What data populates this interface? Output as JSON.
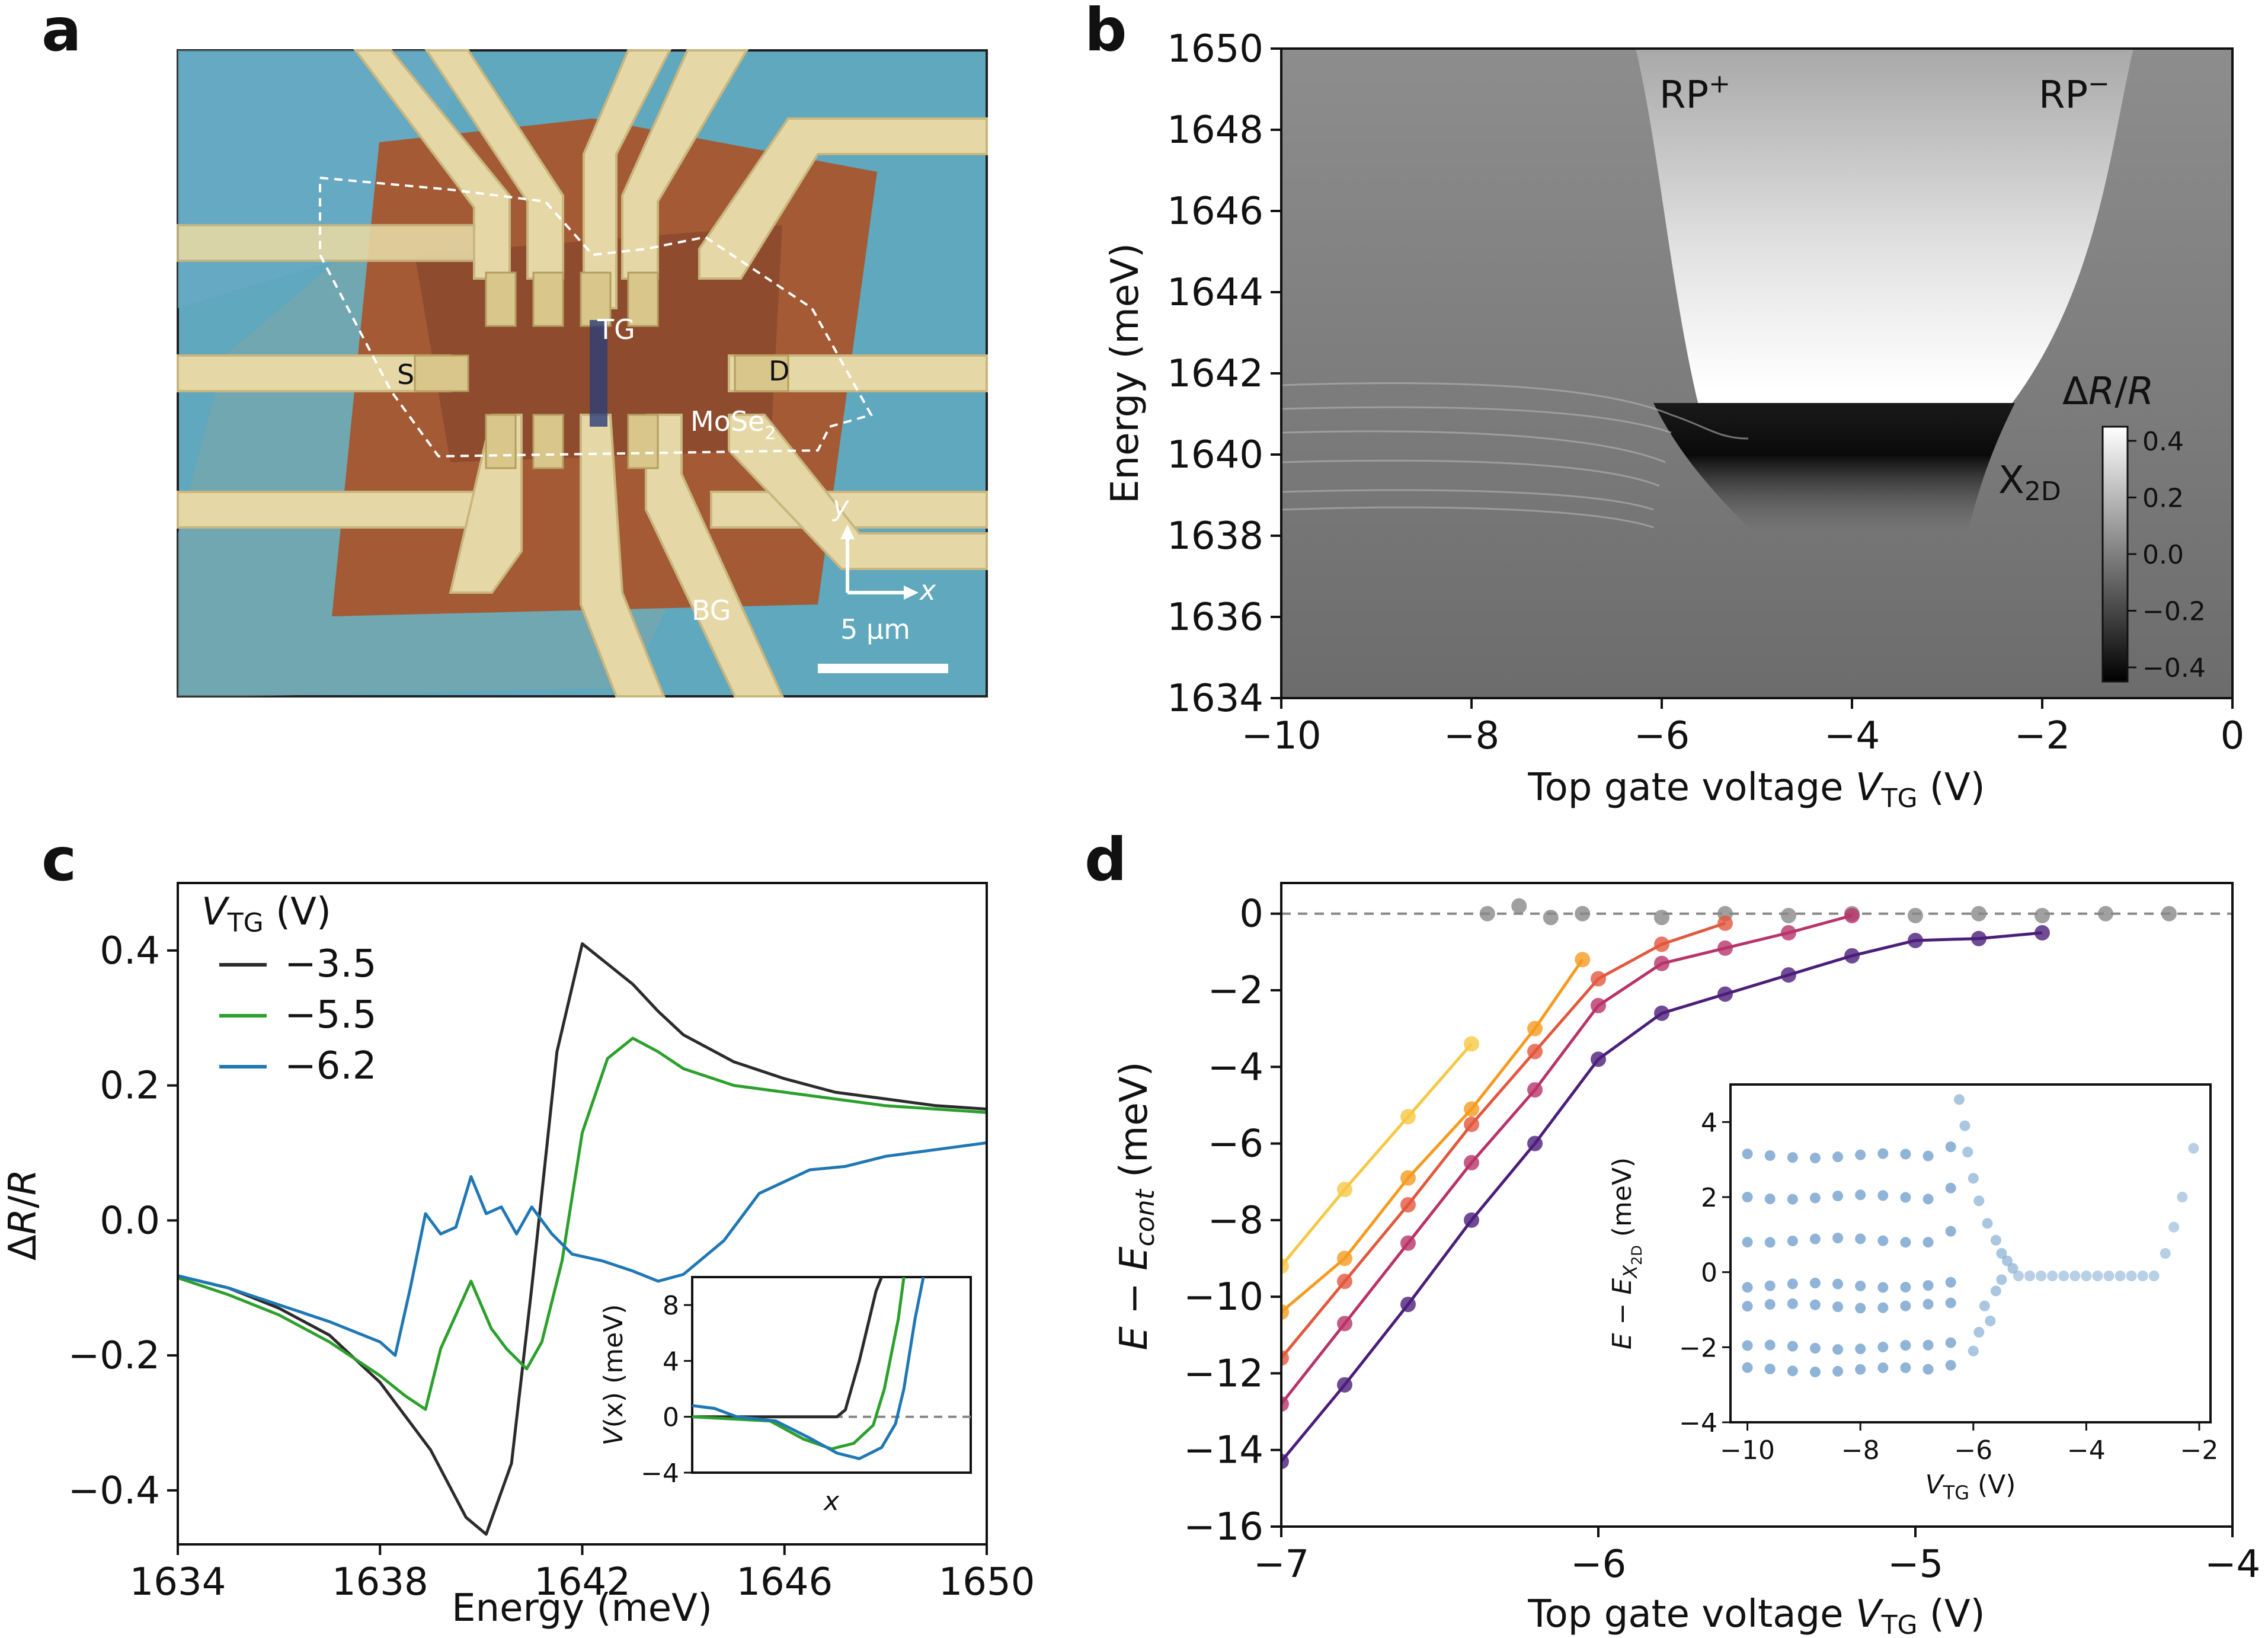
{
  "panel_labels": [
    "a",
    "b",
    "c",
    "d"
  ],
  "colors": {
    "black": "#2b2b2b",
    "green": "#2ca02c",
    "blue": "#1f77b4",
    "gray": "#888888",
    "inset_dots": "#7da7d0"
  },
  "panel_a": {
    "labels": {
      "S": "S",
      "D": "D",
      "TG": "TG",
      "BG": "BG",
      "MoSe2": "MoSe",
      "MoSe2_sub": "2",
      "x_axis": "x",
      "y_axis": "y",
      "scale": "5 μm"
    }
  },
  "chart_data": [
    {
      "id": "b",
      "type": "heatmap",
      "xlabel": "Top gate voltage ",
      "xlabel_var": "V",
      "xlabel_sub": "TG",
      "xlabel_unit": " (V)",
      "ylabel": "Energy (meV)",
      "xlim": [
        -10,
        0
      ],
      "ylim": [
        1634,
        1650
      ],
      "xticks": [
        "−10",
        "−8",
        "−6",
        "−4",
        "−2",
        "0"
      ],
      "yticks": [
        "1634",
        "1636",
        "1638",
        "1640",
        "1642",
        "1644",
        "1646",
        "1648",
        "1650"
      ],
      "annotations": {
        "rp_plus": "RP",
        "rp_plus_sup": "+",
        "rp_minus": "RP",
        "rp_minus_sup": "−",
        "x2d": "X",
        "x2d_sub": "2D"
      },
      "colorbar": {
        "label": "ΔR/R",
        "range": [
          -0.45,
          0.45
        ],
        "ticks": [
          "0.4",
          "0.2",
          "0.0",
          "−0.2",
          "−0.4"
        ]
      }
    },
    {
      "id": "c",
      "type": "line",
      "xlabel": "Energy (meV)",
      "ylabel": "ΔR/R",
      "xlim": [
        1634,
        1650
      ],
      "ylim": [
        -0.48,
        0.5
      ],
      "xticks": [
        "1634",
        "1638",
        "1642",
        "1646",
        "1650"
      ],
      "yticks": [
        "−0.4",
        "−0.2",
        "0.0",
        "0.2",
        "0.4"
      ],
      "legend_title": "V",
      "legend_title_sub": "TG",
      "legend_title_unit": " (V)",
      "series": [
        {
          "name": "−3.5",
          "color": "#2b2b2b",
          "points": [
            [
              1634,
              -0.082
            ],
            [
              1635,
              -0.1
            ],
            [
              1636,
              -0.13
            ],
            [
              1637,
              -0.17
            ],
            [
              1638,
              -0.24
            ],
            [
              1639,
              -0.34
            ],
            [
              1639.7,
              -0.44
            ],
            [
              1640.1,
              -0.465
            ],
            [
              1640.6,
              -0.36
            ],
            [
              1641,
              -0.1
            ],
            [
              1641.5,
              0.25
            ],
            [
              1642,
              0.41
            ],
            [
              1642.5,
              0.38
            ],
            [
              1643,
              0.35
            ],
            [
              1643.5,
              0.31
            ],
            [
              1644,
              0.275
            ],
            [
              1645,
              0.235
            ],
            [
              1646,
              0.21
            ],
            [
              1647,
              0.19
            ],
            [
              1648,
              0.18
            ],
            [
              1649,
              0.17
            ],
            [
              1650,
              0.165
            ]
          ]
        },
        {
          "name": "−5.5",
          "color": "#2ca02c",
          "points": [
            [
              1634,
              -0.085
            ],
            [
              1635,
              -0.11
            ],
            [
              1636,
              -0.14
            ],
            [
              1637,
              -0.18
            ],
            [
              1638,
              -0.23
            ],
            [
              1638.5,
              -0.26
            ],
            [
              1638.9,
              -0.28
            ],
            [
              1639.2,
              -0.19
            ],
            [
              1639.5,
              -0.14
            ],
            [
              1639.8,
              -0.09
            ],
            [
              1640.2,
              -0.16
            ],
            [
              1640.5,
              -0.19
            ],
            [
              1640.9,
              -0.22
            ],
            [
              1641.2,
              -0.18
            ],
            [
              1641.6,
              -0.06
            ],
            [
              1642,
              0.13
            ],
            [
              1642.5,
              0.24
            ],
            [
              1643,
              0.27
            ],
            [
              1643.5,
              0.25
            ],
            [
              1644,
              0.225
            ],
            [
              1645,
              0.2
            ],
            [
              1646,
              0.19
            ],
            [
              1647,
              0.18
            ],
            [
              1648,
              0.17
            ],
            [
              1649,
              0.165
            ],
            [
              1650,
              0.16
            ]
          ]
        },
        {
          "name": "−6.2",
          "color": "#1f77b4",
          "points": [
            [
              1634,
              -0.082
            ],
            [
              1635,
              -0.1
            ],
            [
              1636,
              -0.125
            ],
            [
              1637,
              -0.15
            ],
            [
              1638,
              -0.18
            ],
            [
              1638.3,
              -0.2
            ],
            [
              1638.6,
              -0.1
            ],
            [
              1638.9,
              0.01
            ],
            [
              1639.2,
              -0.02
            ],
            [
              1639.5,
              -0.01
            ],
            [
              1639.8,
              0.065
            ],
            [
              1640.1,
              0.01
            ],
            [
              1640.4,
              0.02
            ],
            [
              1640.7,
              -0.02
            ],
            [
              1641,
              0.02
            ],
            [
              1641.4,
              -0.02
            ],
            [
              1641.8,
              -0.05
            ],
            [
              1642.4,
              -0.06
            ],
            [
              1643,
              -0.075
            ],
            [
              1643.5,
              -0.09
            ],
            [
              1644,
              -0.08
            ],
            [
              1644.8,
              -0.03
            ],
            [
              1645.5,
              0.04
            ],
            [
              1646.5,
              0.075
            ],
            [
              1647.2,
              0.08
            ],
            [
              1648,
              0.095
            ],
            [
              1649,
              0.105
            ],
            [
              1650,
              0.115
            ]
          ]
        }
      ],
      "inset": {
        "xlabel": "x",
        "ylabel_var": "V",
        "ylabel_rest": "(x) (meV)",
        "ylim": [
          -4,
          10
        ],
        "yticks": [
          "8",
          "4",
          "0",
          "−4"
        ],
        "series": [
          {
            "name": "−3.5",
            "color": "#2b2b2b",
            "points": [
              [
                0,
                0
              ],
              [
                0.52,
                0
              ],
              [
                0.55,
                0.5
              ],
              [
                0.6,
                4
              ],
              [
                0.66,
                9
              ],
              [
                0.68,
                10
              ]
            ]
          },
          {
            "name": "−5.5",
            "color": "#2ca02c",
            "points": [
              [
                0,
                0
              ],
              [
                0.28,
                -0.3
              ],
              [
                0.4,
                -1.6
              ],
              [
                0.5,
                -2.3
              ],
              [
                0.58,
                -1.9
              ],
              [
                0.65,
                -0.6
              ],
              [
                0.69,
                2
              ],
              [
                0.74,
                7
              ],
              [
                0.76,
                10
              ]
            ]
          },
          {
            "name": "−6.2",
            "color": "#1f77b4",
            "points": [
              [
                0,
                0.8
              ],
              [
                0.08,
                0.6
              ],
              [
                0.16,
                0
              ],
              [
                0.3,
                -0.3
              ],
              [
                0.42,
                -1.5
              ],
              [
                0.52,
                -2.6
              ],
              [
                0.6,
                -3
              ],
              [
                0.68,
                -2.2
              ],
              [
                0.73,
                -0.5
              ],
              [
                0.76,
                2
              ],
              [
                0.8,
                7
              ],
              [
                0.83,
                10
              ]
            ]
          }
        ]
      }
    },
    {
      "id": "d",
      "type": "scatter",
      "xlabel": "Top gate voltage ",
      "xlabel_var": "V",
      "xlabel_sub": "TG",
      "xlabel_unit": " (V)",
      "ylabel_pre": "E − E",
      "ylabel_sub": "cont",
      "ylabel_unit": " (meV)",
      "xlim": [
        -7,
        -4
      ],
      "ylim": [
        -16,
        0.8
      ],
      "xticks": [
        "−7",
        "−6",
        "−5",
        "−4"
      ],
      "yticks": [
        "0",
        "−2",
        "−4",
        "−6",
        "−8",
        "−10",
        "−12",
        "−14",
        "−16"
      ],
      "series": [
        {
          "name": "gray",
          "color": "#888888",
          "line": false,
          "points": [
            [
              -6.35,
              0
            ],
            [
              -6.25,
              0.2
            ],
            [
              -6.15,
              -0.1
            ],
            [
              -6.05,
              0
            ],
            [
              -5.8,
              -0.1
            ],
            [
              -5.6,
              0
            ],
            [
              -5.4,
              -0.05
            ],
            [
              -5.2,
              0
            ],
            [
              -5.0,
              -0.05
            ],
            [
              -4.8,
              0
            ],
            [
              -4.6,
              -0.05
            ],
            [
              -4.4,
              0
            ],
            [
              -4.2,
              0
            ]
          ]
        },
        {
          "name": "yellow",
          "color": "#f6c844",
          "line": true,
          "points": [
            [
              -7,
              -9.2
            ],
            [
              -6.8,
              -7.2
            ],
            [
              -6.6,
              -5.3
            ],
            [
              -6.4,
              -3.4
            ]
          ]
        },
        {
          "name": "orange",
          "color": "#f59a1f",
          "line": true,
          "points": [
            [
              -7,
              -10.4
            ],
            [
              -6.8,
              -9.0
            ],
            [
              -6.6,
              -6.9
            ],
            [
              -6.4,
              -5.1
            ],
            [
              -6.2,
              -3.0
            ],
            [
              -6.05,
              -1.2
            ]
          ]
        },
        {
          "name": "red",
          "color": "#e2583e",
          "line": true,
          "points": [
            [
              -7,
              -11.6
            ],
            [
              -6.8,
              -9.6
            ],
            [
              -6.6,
              -7.6
            ],
            [
              -6.4,
              -5.5
            ],
            [
              -6.2,
              -3.6
            ],
            [
              -6.0,
              -1.7
            ],
            [
              -5.8,
              -0.8
            ],
            [
              -5.6,
              -0.25
            ]
          ]
        },
        {
          "name": "magenta",
          "color": "#b8336a",
          "line": true,
          "points": [
            [
              -7,
              -12.8
            ],
            [
              -6.8,
              -10.7
            ],
            [
              -6.6,
              -8.6
            ],
            [
              -6.4,
              -6.5
            ],
            [
              -6.2,
              -4.6
            ],
            [
              -6.0,
              -2.4
            ],
            [
              -5.8,
              -1.3
            ],
            [
              -5.6,
              -0.9
            ],
            [
              -5.4,
              -0.5
            ],
            [
              -5.2,
              -0.05
            ]
          ]
        },
        {
          "name": "purple",
          "color": "#4b1e7a",
          "line": true,
          "points": [
            [
              -7,
              -14.3
            ],
            [
              -6.8,
              -12.3
            ],
            [
              -6.6,
              -10.2
            ],
            [
              -6.4,
              -8.0
            ],
            [
              -6.2,
              -6.0
            ],
            [
              -6.0,
              -3.8
            ],
            [
              -5.8,
              -2.6
            ],
            [
              -5.6,
              -2.1
            ],
            [
              -5.4,
              -1.6
            ],
            [
              -5.2,
              -1.1
            ],
            [
              -5.0,
              -0.7
            ],
            [
              -4.8,
              -0.65
            ],
            [
              -4.6,
              -0.5
            ]
          ]
        }
      ],
      "inset": {
        "xlabel_var": "V",
        "xlabel_sub": "TG",
        "xlabel_unit": " (V)",
        "ylabel_pre": "E − E",
        "ylabel_sub": "X",
        "ylabel_sub2": "2D",
        "ylabel_unit": " (meV)",
        "xlim": [
          -10.3,
          -1.8
        ],
        "ylim": [
          -4,
          5
        ],
        "xticks": [
          "−10",
          "−8",
          "−6",
          "−4",
          "−2"
        ],
        "yticks": [
          "4",
          "2",
          "0",
          "−2",
          "−4"
        ],
        "levels": [
          3.1,
          2.0,
          0.85,
          -0.35,
          -0.9,
          -2.0,
          -2.6
        ]
      }
    }
  ]
}
